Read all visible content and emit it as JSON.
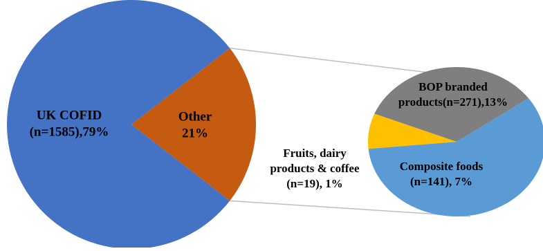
{
  "chart_data": {
    "type": "pie",
    "subtype": "pie-of-pie",
    "main_pie": {
      "slices": [
        {
          "label_lines": [
            "UK COFID",
            "(n=1585),79%"
          ],
          "n": 1585,
          "percent": 79,
          "color": "#4472C4"
        },
        {
          "label_lines": [
            "Other",
            "21%"
          ],
          "percent": 21,
          "color": "#C55A11",
          "exploded": true
        }
      ]
    },
    "secondary_pie": {
      "slices": [
        {
          "label_lines": [
            "BOP branded",
            "products(n=271),13%"
          ],
          "n": 271,
          "percent": 13,
          "color": "#5B9BD5"
        },
        {
          "label_lines": [
            "Composite foods",
            "(n=141), 7%"
          ],
          "n": 141,
          "percent": 7,
          "color": "#7F7F7F"
        },
        {
          "label_lines": [
            "Fruits, dairy",
            "products & coffee",
            "(n=19), 1%"
          ],
          "n": 19,
          "percent": 1,
          "color": "#FFC000",
          "label_outside": true
        }
      ]
    },
    "connector_color": "#BFBFBF",
    "legend": "none"
  }
}
